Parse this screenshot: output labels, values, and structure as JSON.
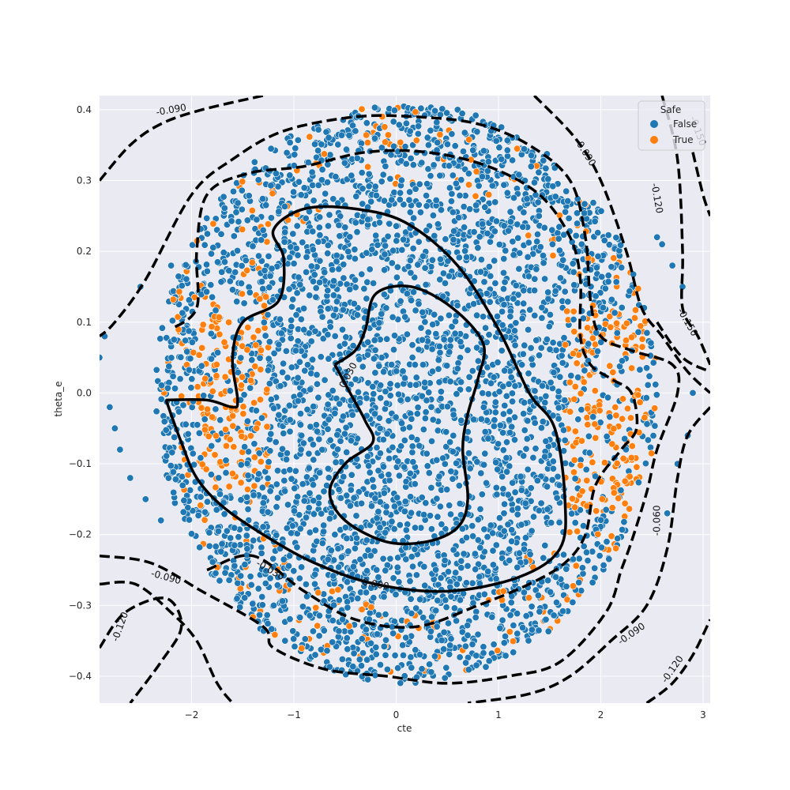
{
  "chart_data": {
    "type": "scatter",
    "xlabel": "cte",
    "ylabel": "theta_e",
    "xlim": [
      -2.9,
      3.07
    ],
    "ylim": [
      -0.438,
      0.42
    ],
    "grid": true,
    "background": "#eaeaf2",
    "x_ticks": [
      -2,
      -1,
      0,
      1,
      2,
      3
    ],
    "x_tick_labels": [
      "−2",
      "−1",
      "0",
      "1",
      "2",
      "3"
    ],
    "y_ticks": [
      -0.4,
      -0.3,
      -0.2,
      -0.1,
      0.0,
      0.1,
      0.2,
      0.3,
      0.4
    ],
    "y_tick_labels": [
      "−0.4",
      "−0.3",
      "−0.2",
      "−0.1",
      "0.0",
      "0.1",
      "0.2",
      "0.3",
      "0.4"
    ],
    "legend": {
      "title": "Safe",
      "placement": "top-right",
      "entries": [
        {
          "label": "False",
          "color": "#1f77b4"
        },
        {
          "label": "True",
          "color": "#ff7f0e"
        }
      ]
    },
    "series": [
      {
        "name": "False",
        "color": "#1f77b4",
        "description_points": "dense elliptical cloud centered near (0.2, 0.0), spanning cte ≈ -2.9 to 3.0 and theta_e ≈ -0.44 to 0.42"
      },
      {
        "name": "True",
        "color": "#ff7f0e",
        "description_points": "scattered mostly near the cloud boundary, concentrated around cte ≈ -1.6 and cte ≈ 2.0, theta_e ≈ -0.1 to 0.1"
      }
    ],
    "contours": [
      {
        "level": "0.030",
        "style": "solid",
        "points": [
          [
            -0.6,
            0.04
          ],
          [
            -0.45,
            0.0
          ],
          [
            -0.3,
            -0.04
          ],
          [
            -0.23,
            -0.07
          ],
          [
            -0.5,
            -0.1
          ],
          [
            -0.65,
            -0.14
          ],
          [
            -0.5,
            -0.18
          ],
          [
            -0.1,
            -0.21
          ],
          [
            0.3,
            -0.21
          ],
          [
            0.6,
            -0.19
          ],
          [
            0.7,
            -0.15
          ],
          [
            0.65,
            -0.08
          ],
          [
            0.7,
            -0.03
          ],
          [
            0.8,
            0.02
          ],
          [
            0.85,
            0.07
          ],
          [
            0.55,
            0.12
          ],
          [
            0.15,
            0.15
          ],
          [
            -0.2,
            0.14
          ],
          [
            -0.3,
            0.09
          ],
          [
            -0.4,
            0.06
          ],
          [
            -0.6,
            0.04
          ]
        ]
      },
      {
        "level": "0.000",
        "style": "solid",
        "points": [
          [
            -2.25,
            -0.01
          ],
          [
            -1.85,
            -0.01
          ],
          [
            -1.6,
            -0.02
          ],
          [
            -1.55,
            -0.01
          ],
          [
            -1.6,
            0.05
          ],
          [
            -1.5,
            0.1
          ],
          [
            -1.15,
            0.13
          ],
          [
            -1.1,
            0.19
          ],
          [
            -1.2,
            0.23
          ],
          [
            -0.9,
            0.26
          ],
          [
            -0.4,
            0.26
          ],
          [
            0.1,
            0.24
          ],
          [
            0.6,
            0.18
          ],
          [
            1.0,
            0.09
          ],
          [
            1.3,
            0.0
          ],
          [
            1.55,
            -0.05
          ],
          [
            1.65,
            -0.15
          ],
          [
            1.6,
            -0.22
          ],
          [
            1.2,
            -0.26
          ],
          [
            0.5,
            -0.28
          ],
          [
            -0.2,
            -0.27
          ],
          [
            -0.8,
            -0.24
          ],
          [
            -1.3,
            -0.2
          ],
          [
            -1.7,
            -0.16
          ],
          [
            -1.95,
            -0.12
          ],
          [
            -2.1,
            -0.07
          ],
          [
            -2.25,
            -0.01
          ]
        ]
      },
      {
        "level": "-0.030",
        "style": "dashed",
        "points": [
          [
            -1.85,
            -0.25
          ],
          [
            -1.4,
            -0.23
          ],
          [
            -0.9,
            -0.28
          ],
          [
            -0.4,
            -0.32
          ],
          [
            0.2,
            -0.33
          ],
          [
            0.8,
            -0.3
          ],
          [
            1.3,
            -0.27
          ],
          [
            1.65,
            -0.24
          ],
          [
            1.85,
            -0.2
          ],
          [
            1.95,
            -0.13
          ],
          [
            2.2,
            -0.08
          ],
          [
            2.35,
            -0.05
          ],
          [
            2.3,
            0.0
          ],
          [
            2.1,
            0.02
          ],
          [
            1.9,
            0.04
          ],
          [
            1.8,
            0.08
          ],
          [
            1.8,
            0.16
          ],
          [
            1.7,
            0.22
          ],
          [
            1.4,
            0.28
          ],
          [
            0.9,
            0.32
          ],
          [
            0.3,
            0.34
          ],
          [
            -0.3,
            0.34
          ],
          [
            -0.9,
            0.32
          ],
          [
            -1.45,
            0.31
          ],
          [
            -1.85,
            0.28
          ],
          [
            -1.95,
            0.2
          ],
          [
            -1.95,
            0.12
          ],
          [
            -2.2,
            0.09
          ]
        ]
      },
      {
        "level": "-0.060",
        "style": "dashed",
        "points": [
          [
            -2.9,
            -0.23
          ],
          [
            -2.4,
            -0.24
          ],
          [
            -1.9,
            -0.28
          ],
          [
            -1.3,
            -0.33
          ],
          [
            -1.2,
            -0.36
          ],
          [
            -0.7,
            -0.39
          ],
          [
            -0.1,
            -0.4
          ],
          [
            0.5,
            -0.41
          ],
          [
            1.1,
            -0.4
          ],
          [
            1.6,
            -0.38
          ],
          [
            2.05,
            -0.31
          ],
          [
            2.2,
            -0.25
          ],
          [
            2.3,
            -0.21
          ],
          [
            2.45,
            -0.14
          ],
          [
            2.55,
            -0.08
          ],
          [
            2.75,
            0.0
          ],
          [
            2.7,
            0.04
          ],
          [
            2.3,
            0.06
          ],
          [
            2.0,
            0.08
          ],
          [
            1.9,
            0.13
          ],
          [
            1.85,
            0.22
          ],
          [
            1.7,
            0.3
          ],
          [
            1.3,
            0.35
          ],
          [
            0.8,
            0.38
          ],
          [
            0.2,
            0.39
          ],
          [
            -0.4,
            0.39
          ],
          [
            -1.1,
            0.37
          ],
          [
            -1.6,
            0.33
          ],
          [
            -2.0,
            0.28
          ],
          [
            -2.45,
            0.16
          ],
          [
            -2.75,
            0.1
          ],
          [
            -2.9,
            0.08
          ]
        ]
      },
      {
        "level": "-0.090",
        "style": "dashed",
        "points": [
          [
            -2.9,
            -0.27
          ],
          [
            -2.55,
            -0.27
          ],
          [
            -2.2,
            -0.31
          ],
          [
            -1.95,
            -0.35
          ],
          [
            -1.75,
            -0.41
          ],
          [
            -1.6,
            -0.438
          ]
        ]
      },
      {
        "level": "-0.090",
        "style": "dashed",
        "points": [
          [
            -2.9,
            0.3
          ],
          [
            -2.6,
            0.35
          ],
          [
            -2.3,
            0.38
          ],
          [
            -1.9,
            0.4
          ],
          [
            -1.3,
            0.42
          ]
        ]
      },
      {
        "level": "-0.090",
        "style": "dashed",
        "points": [
          [
            1.35,
            0.42
          ],
          [
            1.75,
            0.36
          ],
          [
            2.0,
            0.3
          ],
          [
            2.25,
            0.2
          ],
          [
            2.4,
            0.12
          ],
          [
            2.6,
            0.08
          ],
          [
            2.85,
            0.03
          ],
          [
            3.07,
            0.0
          ]
        ]
      },
      {
        "level": "-0.090",
        "style": "dashed",
        "points": [
          [
            3.07,
            -0.02
          ],
          [
            2.85,
            -0.06
          ],
          [
            2.75,
            -0.12
          ],
          [
            2.65,
            -0.22
          ],
          [
            2.45,
            -0.3
          ],
          [
            2.1,
            -0.35
          ],
          [
            1.7,
            -0.4
          ],
          [
            1.3,
            -0.425
          ],
          [
            0.7,
            -0.438
          ]
        ]
      },
      {
        "level": "-0.120",
        "style": "dashed",
        "points": [
          [
            -2.9,
            -0.36
          ],
          [
            -2.65,
            -0.31
          ],
          [
            -2.25,
            -0.29
          ],
          [
            -2.1,
            -0.33
          ],
          [
            -2.3,
            -0.38
          ],
          [
            -2.6,
            -0.438
          ]
        ]
      },
      {
        "level": "-0.120",
        "style": "dashed",
        "points": [
          [
            2.6,
            0.42
          ],
          [
            2.75,
            0.33
          ],
          [
            2.8,
            0.2
          ],
          [
            2.8,
            0.12
          ],
          [
            2.95,
            0.08
          ],
          [
            3.07,
            0.04
          ]
        ]
      },
      {
        "level": "-0.120",
        "style": "dashed",
        "points": [
          [
            2.45,
            -0.438
          ],
          [
            2.7,
            -0.41
          ],
          [
            2.9,
            -0.37
          ],
          [
            3.07,
            -0.32
          ]
        ]
      },
      {
        "level": "-0.150",
        "style": "dashed",
        "points": [
          [
            2.9,
            0.34
          ],
          [
            3.0,
            0.28
          ],
          [
            3.07,
            0.25
          ]
        ]
      },
      {
        "level": "-0.150",
        "style": "dashed",
        "points": [
          [
            2.55,
            0.1
          ],
          [
            2.8,
            0.05
          ],
          [
            3.07,
            0.03
          ]
        ]
      }
    ],
    "contour_labels": [
      {
        "text": "0.030",
        "x": -0.47,
        "y": 0.025,
        "angle": -62
      },
      {
        "text": "0.000",
        "x": -0.2,
        "y": -0.27,
        "angle": 10
      },
      {
        "text": "-0.030",
        "x": -1.23,
        "y": -0.25,
        "angle": 30
      },
      {
        "text": "-0.090",
        "x": -2.2,
        "y": 0.4,
        "angle": -10
      },
      {
        "text": "-0.090",
        "x": 1.85,
        "y": 0.34,
        "angle": 58
      },
      {
        "text": "-0.120",
        "x": 2.55,
        "y": 0.275,
        "angle": 80
      },
      {
        "text": "-0.150",
        "x": 2.85,
        "y": 0.1,
        "angle": 60
      },
      {
        "text": "-0.060",
        "x": 2.55,
        "y": -0.18,
        "angle": -90
      },
      {
        "text": "-0.090",
        "x": -2.25,
        "y": -0.26,
        "angle": 15
      },
      {
        "text": "-0.120",
        "x": -2.7,
        "y": -0.33,
        "angle": -70
      },
      {
        "text": "-0.090",
        "x": 2.3,
        "y": -0.34,
        "angle": -35
      },
      {
        "text": "-0.120",
        "x": 2.7,
        "y": -0.39,
        "angle": -55
      },
      {
        "text": "-0.150",
        "x": 2.95,
        "y": 0.37,
        "angle": 70
      }
    ]
  }
}
